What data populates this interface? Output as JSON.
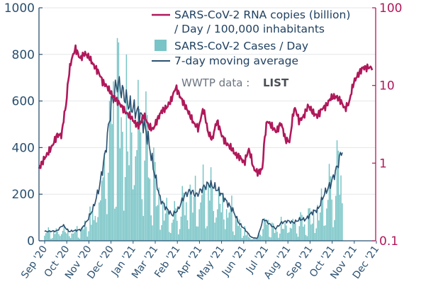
{
  "chart_data": {
    "type": "bar+line",
    "title": "",
    "annotation": {
      "prefix": "WWTP data : ",
      "emphasis": "LIST"
    },
    "colors": {
      "rna": "#b0185a",
      "cases": "#78c4c6",
      "avg": "#2a5070",
      "axis_left": "#2a5070",
      "axis_right": "#b0185a"
    },
    "left_axis": {
      "ylim": [
        0,
        1000
      ],
      "ticks": [
        "0",
        "200",
        "400",
        "600",
        "800",
        "1000"
      ]
    },
    "right_axis": {
      "scale": "log",
      "ylim": [
        0.1,
        100
      ],
      "ticks": [
        "0.1",
        "1",
        "10",
        "100"
      ]
    },
    "x_ticks": [
      "Sep '20",
      "Oct '20",
      "Nov '20",
      "Dec '20",
      "Jan '21",
      "Mar '21",
      "Feb '21",
      "Apr '21",
      "May '21",
      "Jun '21",
      "Jul '21",
      "Aug '21",
      "Sep '21",
      "Oct '21",
      "Nov '21",
      "Dec '21"
    ],
    "legend": [
      {
        "kind": "line",
        "series": "rna",
        "lines": [
          "SARS-CoV-2 RNA copies (billion)",
          "/ Day / 100,000 inhabitants"
        ]
      },
      {
        "kind": "bar",
        "series": "cases",
        "lines": [
          "SARS-CoV-2 Cases / Day"
        ]
      },
      {
        "kind": "line",
        "series": "avg",
        "lines": [
          "7-day moving average"
        ]
      }
    ],
    "avg_anchors": [
      [
        0,
        40
      ],
      [
        2,
        42
      ],
      [
        3,
        68
      ],
      [
        4,
        40
      ],
      [
        6,
        48
      ],
      [
        7,
        86
      ],
      [
        8,
        140
      ],
      [
        9,
        230
      ],
      [
        10,
        380
      ],
      [
        11,
        590
      ],
      [
        12,
        680
      ],
      [
        13,
        630
      ],
      [
        14,
        580
      ],
      [
        15,
        560
      ],
      [
        16,
        530
      ],
      [
        17,
        440
      ],
      [
        18,
        300
      ],
      [
        19,
        180
      ],
      [
        20,
        140
      ],
      [
        21,
        110
      ],
      [
        22,
        135
      ],
      [
        23,
        195
      ],
      [
        24,
        215
      ],
      [
        25,
        195
      ],
      [
        26,
        225
      ],
      [
        27,
        245
      ],
      [
        28,
        230
      ],
      [
        29,
        205
      ],
      [
        30,
        165
      ],
      [
        31,
        130
      ],
      [
        32,
        75
      ],
      [
        33,
        48
      ],
      [
        34,
        15
      ],
      [
        35,
        10
      ],
      [
        36,
        95
      ],
      [
        37,
        72
      ],
      [
        38,
        52
      ],
      [
        39,
        78
      ],
      [
        40,
        85
      ],
      [
        41,
        78
      ],
      [
        42,
        92
      ],
      [
        43,
        92
      ],
      [
        44,
        122
      ],
      [
        45,
        135
      ],
      [
        46,
        200
      ],
      [
        47,
        240
      ],
      [
        48,
        305
      ],
      [
        49,
        395
      ]
    ],
    "rna_anchors": [
      [
        0,
        0.85
      ],
      [
        1,
        1.1
      ],
      [
        2,
        1.35
      ],
      [
        3,
        1.7
      ],
      [
        4,
        2.3
      ],
      [
        5,
        2.3
      ],
      [
        6,
        5.8
      ],
      [
        7,
        20
      ],
      [
        8,
        30
      ],
      [
        9,
        22
      ],
      [
        10,
        26
      ],
      [
        11,
        23
      ],
      [
        12,
        18
      ],
      [
        13,
        15
      ],
      [
        14,
        11
      ],
      [
        15,
        9.5
      ],
      [
        16,
        7.5
      ],
      [
        17,
        6.5
      ],
      [
        18,
        5.5
      ],
      [
        19,
        4.5
      ],
      [
        20,
        4.0
      ],
      [
        21,
        3.3
      ],
      [
        22,
        3.0
      ],
      [
        23,
        4.2
      ],
      [
        24,
        3.0
      ],
      [
        25,
        2.7
      ],
      [
        26,
        3.7
      ],
      [
        27,
        4.8
      ],
      [
        28,
        5.2
      ],
      [
        29,
        6.5
      ],
      [
        30,
        9.5
      ],
      [
        31,
        7.0
      ],
      [
        32,
        5.5
      ],
      [
        33,
        4.2
      ],
      [
        34,
        3.2
      ],
      [
        35,
        2.8
      ],
      [
        36,
        5.0
      ],
      [
        37,
        2.5
      ],
      [
        38,
        2.0
      ],
      [
        39,
        3.5
      ],
      [
        40,
        2.3
      ],
      [
        41,
        1.8
      ],
      [
        42,
        1.6
      ],
      [
        43,
        1.3
      ],
      [
        44,
        1.2
      ],
      [
        45,
        1.0
      ],
      [
        46,
        1.5
      ],
      [
        47,
        0.85
      ],
      [
        48,
        0.75
      ],
      [
        49,
        0.85
      ],
      [
        50,
        3.5
      ],
      [
        51,
        3.0
      ],
      [
        52,
        2.5
      ],
      [
        53,
        3.3
      ],
      [
        54,
        2.0
      ],
      [
        55,
        1.9
      ],
      [
        56,
        5.2
      ],
      [
        57,
        3.5
      ],
      [
        58,
        4.0
      ],
      [
        59,
        5.5
      ],
      [
        60,
        4.5
      ],
      [
        61,
        4.0
      ],
      [
        62,
        5.0
      ],
      [
        63,
        5.5
      ],
      [
        64,
        7.0
      ],
      [
        65,
        7.2
      ],
      [
        66,
        6.5
      ],
      [
        67,
        5.0
      ],
      [
        68,
        6.0
      ],
      [
        69,
        11
      ],
      [
        70,
        14
      ],
      [
        71,
        17
      ],
      [
        72,
        17
      ],
      [
        73,
        17
      ]
    ]
  }
}
